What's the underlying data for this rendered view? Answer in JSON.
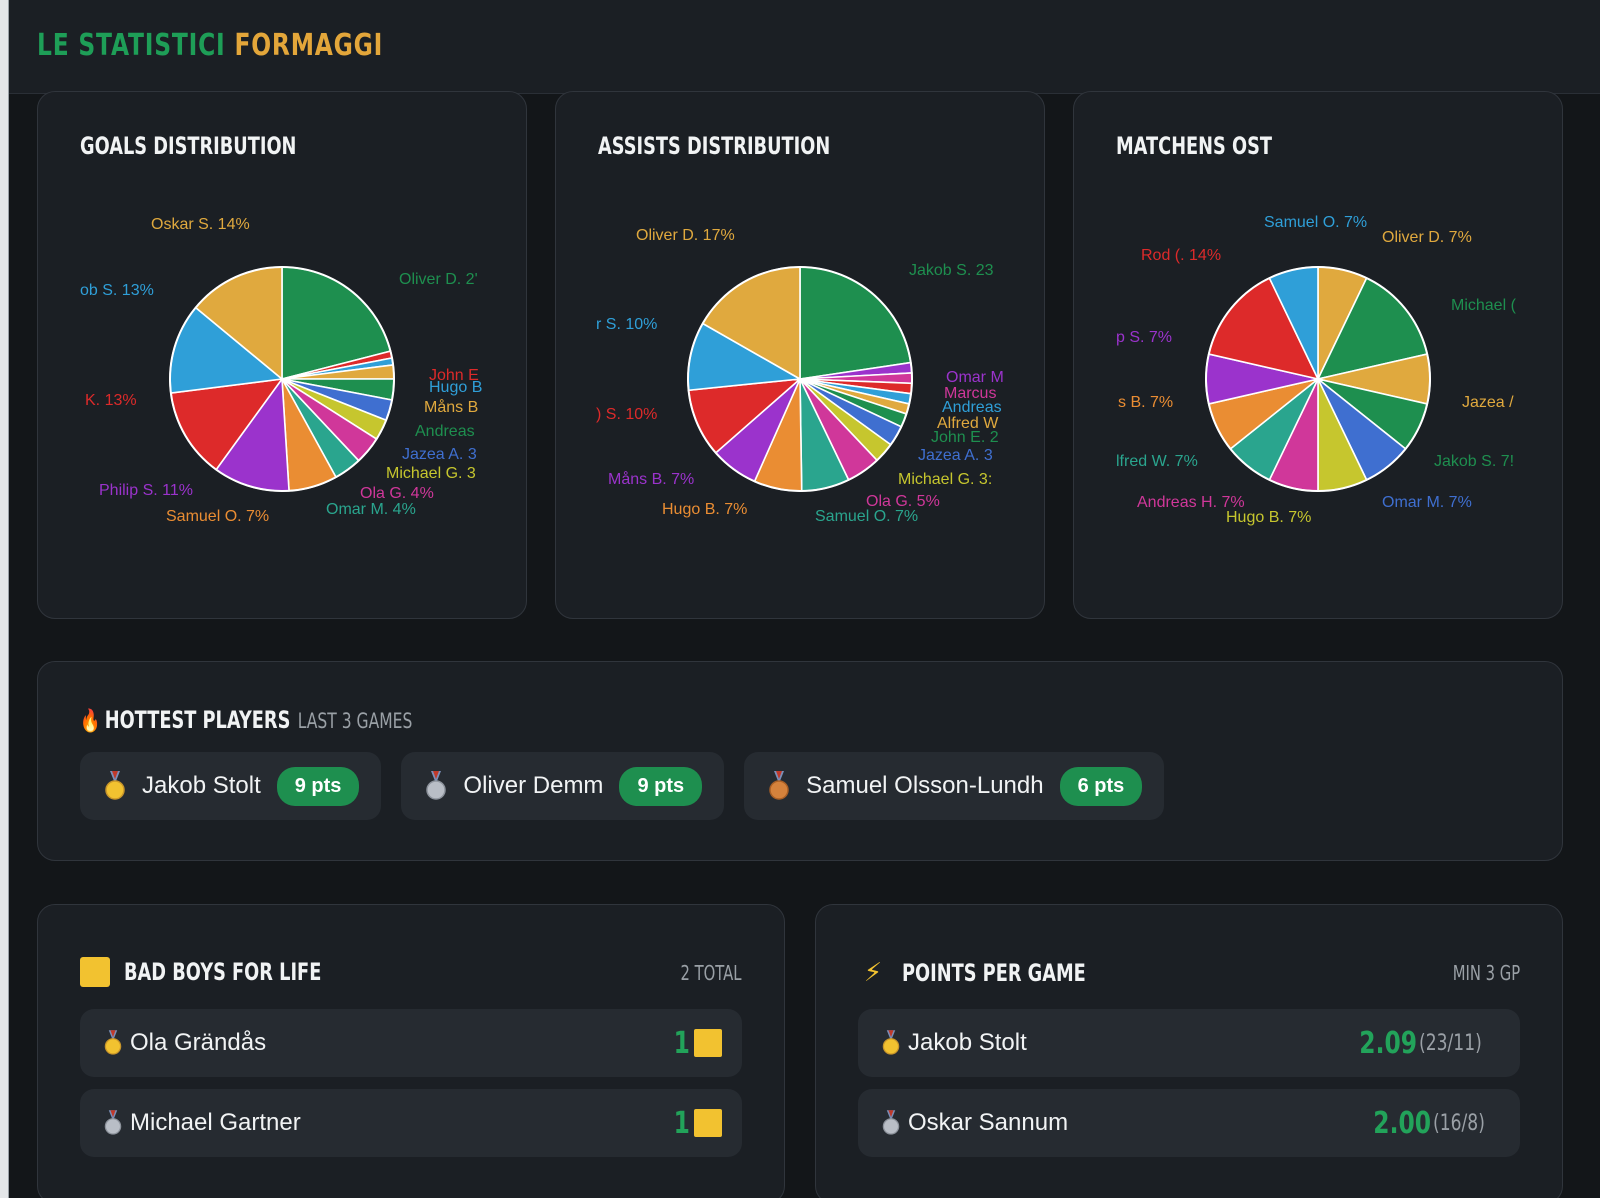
{
  "brand": {
    "part1": "LE STATISTICI",
    "part2": "FORMAGGI"
  },
  "charts": [
    {
      "title": "GOALS DISTRIBUTION",
      "slices": [
        {
          "value": 21,
          "color": "#1e8f4f"
        },
        {
          "value": 1,
          "color": "#dd2a2a"
        },
        {
          "value": 1,
          "color": "#2f9fd8"
        },
        {
          "value": 2,
          "color": "#e0a93e"
        },
        {
          "value": 3,
          "color": "#1e8f4f"
        },
        {
          "value": 3,
          "color": "#3f6fd0"
        },
        {
          "value": 3,
          "color": "#c6c62e"
        },
        {
          "value": 4,
          "color": "#d0379a"
        },
        {
          "value": 4,
          "color": "#2aa58e"
        },
        {
          "value": 7,
          "color": "#ea8d33"
        },
        {
          "value": 11,
          "color": "#9b33cc"
        },
        {
          "value": 13,
          "color": "#dd2a2a"
        },
        {
          "value": 13,
          "color": "#2f9fd8"
        },
        {
          "value": 14,
          "color": "#e0a93e"
        }
      ],
      "labels": [
        {
          "text": "Oskar S. 14%",
          "color": "#e0a93e"
        },
        {
          "text": "ob S. 13%",
          "color": "#2f9fd8"
        },
        {
          "text": "Oliver D. 2'",
          "color": "#1e8f4f"
        },
        {
          "text": "John E",
          "color": "#dd2a2a"
        },
        {
          "text": "Hugo B",
          "color": "#2f9fd8"
        },
        {
          "text": "Måns B",
          "color": "#e0a93e"
        },
        {
          "text": "K. 13%",
          "color": "#dd2a2a"
        },
        {
          "text": "Andreas",
          "color": "#1e8f4f"
        },
        {
          "text": "Jazea A. 3",
          "color": "#3f6fd0"
        },
        {
          "text": "Michael G. 3",
          "color": "#c6c62e"
        },
        {
          "text": "Philip S. 11%",
          "color": "#9b33cc"
        },
        {
          "text": "Ola G. 4%",
          "color": "#d0379a"
        },
        {
          "text": "Samuel O. 7%",
          "color": "#ea8d33"
        },
        {
          "text": "Omar M. 4%",
          "color": "#2aa58e"
        }
      ]
    },
    {
      "title": "ASSISTS DISTRIBUTION",
      "slices": [
        {
          "value": 23,
          "color": "#1e8f4f"
        },
        {
          "value": 1.5,
          "color": "#9b33cc"
        },
        {
          "value": 1.5,
          "color": "#d0379a"
        },
        {
          "value": 1.5,
          "color": "#dd2a2a"
        },
        {
          "value": 1.5,
          "color": "#2f9fd8"
        },
        {
          "value": 1.5,
          "color": "#e0a93e"
        },
        {
          "value": 2,
          "color": "#1e8f4f"
        },
        {
          "value": 3,
          "color": "#3f6fd0"
        },
        {
          "value": 3,
          "color": "#c6c62e"
        },
        {
          "value": 5,
          "color": "#d0379a"
        },
        {
          "value": 7,
          "color": "#2aa58e"
        },
        {
          "value": 7,
          "color": "#ea8d33"
        },
        {
          "value": 7,
          "color": "#9b33cc"
        },
        {
          "value": 10,
          "color": "#dd2a2a"
        },
        {
          "value": 10,
          "color": "#2f9fd8"
        },
        {
          "value": 17,
          "color": "#e0a93e"
        }
      ],
      "labels": [
        {
          "text": "Oliver D. 17%",
          "color": "#e0a93e"
        },
        {
          "text": "Jakob S. 23",
          "color": "#1e8f4f"
        },
        {
          "text": "r S. 10%",
          "color": "#2f9fd8"
        },
        {
          "text": "Omar M",
          "color": "#9b33cc"
        },
        {
          "text": "Marcus",
          "color": "#d0379a"
        },
        {
          "text": "Andreas",
          "color": "#2f9fd8"
        },
        {
          "text": "Alfred W",
          "color": "#e0a93e"
        },
        {
          "text": "John E. 2",
          "color": "#1e8f4f"
        },
        {
          "text": ") S. 10%",
          "color": "#dd2a2a"
        },
        {
          "text": "Jazea A. 3",
          "color": "#3f6fd0"
        },
        {
          "text": "Måns B. 7%",
          "color": "#9b33cc"
        },
        {
          "text": "Michael G. 3:",
          "color": "#c6c62e"
        },
        {
          "text": "Ola G. 5%",
          "color": "#d0379a"
        },
        {
          "text": "Hugo B. 7%",
          "color": "#ea8d33"
        },
        {
          "text": "Samuel O. 7%",
          "color": "#2aa58e"
        }
      ]
    },
    {
      "title": "MATCHENS OST",
      "slices": [
        {
          "value": 7,
          "color": "#e0a93e"
        },
        {
          "value": 14,
          "color": "#1e8f4f"
        },
        {
          "value": 7,
          "color": "#e0a93e"
        },
        {
          "value": 7,
          "color": "#1e8f4f"
        },
        {
          "value": 7,
          "color": "#3f6fd0"
        },
        {
          "value": 7,
          "color": "#c6c62e"
        },
        {
          "value": 7,
          "color": "#d0379a"
        },
        {
          "value": 7,
          "color": "#2aa58e"
        },
        {
          "value": 7,
          "color": "#ea8d33"
        },
        {
          "value": 7,
          "color": "#9b33cc"
        },
        {
          "value": 14,
          "color": "#dd2a2a"
        },
        {
          "value": 7,
          "color": "#2f9fd8"
        }
      ],
      "labels": [
        {
          "text": "Samuel O. 7%",
          "color": "#2f9fd8"
        },
        {
          "text": "Oliver D. 7%",
          "color": "#e0a93e"
        },
        {
          "text": "Rod (. 14%",
          "color": "#dd2a2a"
        },
        {
          "text": "Michael (",
          "color": "#1e8f4f"
        },
        {
          "text": "p S. 7%",
          "color": "#9b33cc"
        },
        {
          "text": "s B. 7%",
          "color": "#ea8d33"
        },
        {
          "text": "Jazea /",
          "color": "#e0a93e"
        },
        {
          "text": "lfred W. 7%",
          "color": "#2aa58e"
        },
        {
          "text": "Jakob S. 7!",
          "color": "#1e8f4f"
        },
        {
          "text": "Andreas H. 7%",
          "color": "#d0379a"
        },
        {
          "text": "Omar M. 7%",
          "color": "#3f6fd0"
        },
        {
          "text": "Hugo B. 7%",
          "color": "#c6c62e"
        }
      ]
    }
  ],
  "hottest": {
    "title": "HOTTEST PLAYERS",
    "subtitle": "LAST 3 GAMES",
    "players": [
      {
        "name": "Jakob Stolt",
        "pts": "9 pts",
        "medal": "gold"
      },
      {
        "name": "Oliver Demm",
        "pts": "9 pts",
        "medal": "silver"
      },
      {
        "name": "Samuel Olsson-Lundh",
        "pts": "6 pts",
        "medal": "bronze"
      }
    ]
  },
  "bad_boys": {
    "title": "BAD BOYS FOR LIFE",
    "meta": "2 TOTAL",
    "rows": [
      {
        "name": "Ola Grändås",
        "count": "1",
        "medal": "gold"
      },
      {
        "name": "Michael Gartner",
        "count": "1",
        "medal": "silver"
      }
    ]
  },
  "ppg": {
    "title": "POINTS PER GAME",
    "meta": "MIN 3 GP",
    "rows": [
      {
        "name": "Jakob Stolt",
        "value": "2.09",
        "detail": "(23/11)",
        "medal": "gold"
      },
      {
        "name": "Oskar Sannum",
        "value": "2.00",
        "detail": "(16/8)",
        "medal": "silver"
      }
    ]
  }
}
